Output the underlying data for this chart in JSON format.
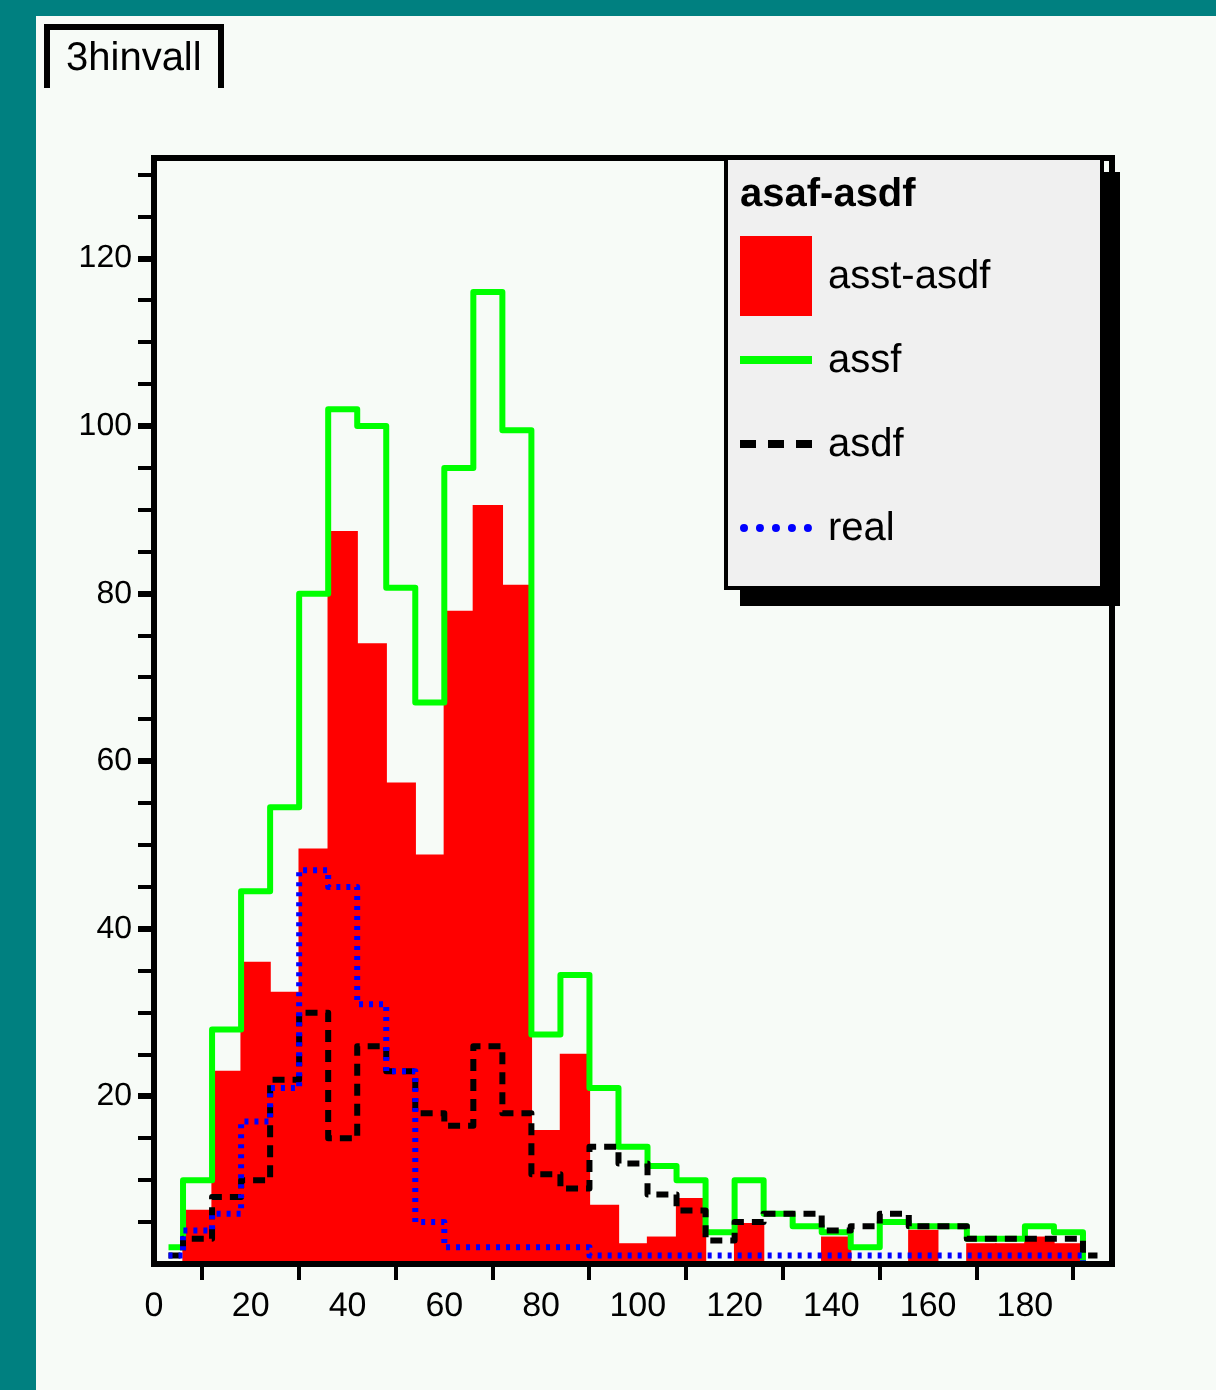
{
  "chart_data": {
    "type": "histogram",
    "title": "3hinvall",
    "legend_title": "asaf-asdf",
    "legend": "top right",
    "bins": [
      0,
      6,
      12,
      18,
      24,
      30,
      36,
      42,
      48,
      54,
      60,
      66,
      72,
      78,
      84,
      90,
      96,
      102,
      108,
      114,
      120,
      126,
      132,
      138,
      144,
      150,
      156,
      162,
      168,
      174,
      180,
      186,
      192,
      198
    ],
    "xlim": [
      0,
      198
    ],
    "xticks": [
      0,
      20,
      40,
      60,
      80,
      100,
      120,
      140,
      160,
      180
    ],
    "ylim": [
      0,
      132
    ],
    "yticks": [
      {
        "value": 5,
        "label": null
      },
      {
        "value": 10,
        "label": null
      },
      {
        "value": 15,
        "label": null
      },
      20,
      {
        "value": 25,
        "label": null
      },
      {
        "value": 30,
        "label": null
      },
      {
        "value": 35,
        "label": null
      },
      40,
      {
        "value": 45,
        "label": null
      },
      {
        "value": 50,
        "label": null
      },
      {
        "value": 55,
        "label": null
      },
      60,
      {
        "value": 65,
        "label": null
      },
      {
        "value": 70,
        "label": null
      },
      {
        "value": 75,
        "label": null
      },
      80,
      {
        "value": 85,
        "label": null
      },
      {
        "value": 90,
        "label": null
      },
      {
        "value": 95,
        "label": null
      },
      100,
      {
        "value": 105,
        "label": null
      },
      {
        "value": 110,
        "label": null
      },
      {
        "value": 115,
        "label": null
      },
      120,
      {
        "value": 125,
        "label": null
      },
      {
        "value": 130,
        "label": null
      }
    ],
    "series": [
      {
        "name": "asst-asdf",
        "color": "#ff0000",
        "values": [
          0,
          6.4,
          23,
          36,
          32.4,
          49.5,
          87.4,
          74,
          57.4,
          48.8,
          77.9,
          90.5,
          81,
          15.9,
          25,
          7,
          2.4,
          3.2,
          7.8,
          0,
          4.8,
          0,
          0,
          3.2,
          0,
          0,
          4,
          0,
          2.4,
          2.4,
          3.2,
          2.4,
          0
        ]
      },
      {
        "name": "assf",
        "type": "step",
        "color": "#00ff00",
        "x": [
          3,
          9,
          15,
          21,
          27,
          33,
          39,
          45,
          51,
          57,
          63,
          69,
          75,
          81,
          87,
          93,
          99,
          105,
          111,
          117,
          123,
          129,
          135,
          141,
          147,
          153,
          159,
          165,
          171,
          177,
          183,
          189,
          195
        ],
        "values": [
          2,
          10,
          28,
          44.5,
          54.5,
          80,
          102,
          100,
          80.7,
          67,
          95,
          116,
          99.5,
          27.4,
          34.5,
          21,
          14,
          11.7,
          10,
          3.8,
          10,
          6,
          4.5,
          3.8,
          2,
          5,
          4.5,
          4.5,
          3,
          3,
          4.5,
          3.8,
          0
        ]
      },
      {
        "name": "asdf",
        "type": "step",
        "color": "#000000",
        "line_style": "dashed",
        "x": [
          3,
          9,
          15,
          21,
          27,
          33,
          39,
          45,
          51,
          57,
          63,
          69,
          75,
          81,
          87,
          93,
          99,
          105,
          111,
          117,
          123,
          129,
          135,
          141,
          147,
          153,
          159,
          165,
          171,
          177,
          183,
          189,
          195
        ],
        "values": [
          1,
          3,
          8,
          10,
          22,
          30,
          15,
          26,
          23,
          18,
          16.5,
          26,
          18,
          10.7,
          9,
          14,
          12,
          8.3,
          6.4,
          2.8,
          5,
          6,
          6,
          4,
          4.5,
          6,
          4.5,
          4.5,
          3,
          3,
          3,
          3,
          1
        ]
      },
      {
        "name": "real",
        "type": "step",
        "color": "#0000ff",
        "line_style": "dotted",
        "x": [
          3,
          9,
          15,
          21,
          27,
          33,
          39,
          45,
          51,
          57,
          63,
          69,
          75,
          81,
          87,
          93,
          99,
          105,
          111,
          117,
          123,
          129,
          135,
          141,
          147,
          153,
          159,
          165,
          171,
          177,
          183,
          189,
          195
        ],
        "values": [
          1,
          4,
          6,
          17,
          21,
          47,
          45,
          31,
          23,
          5,
          2,
          2,
          2,
          2,
          2,
          1,
          1,
          1,
          1,
          1,
          1,
          1,
          1,
          1,
          1,
          1,
          1,
          1,
          1,
          1,
          1,
          1,
          0
        ]
      }
    ]
  }
}
